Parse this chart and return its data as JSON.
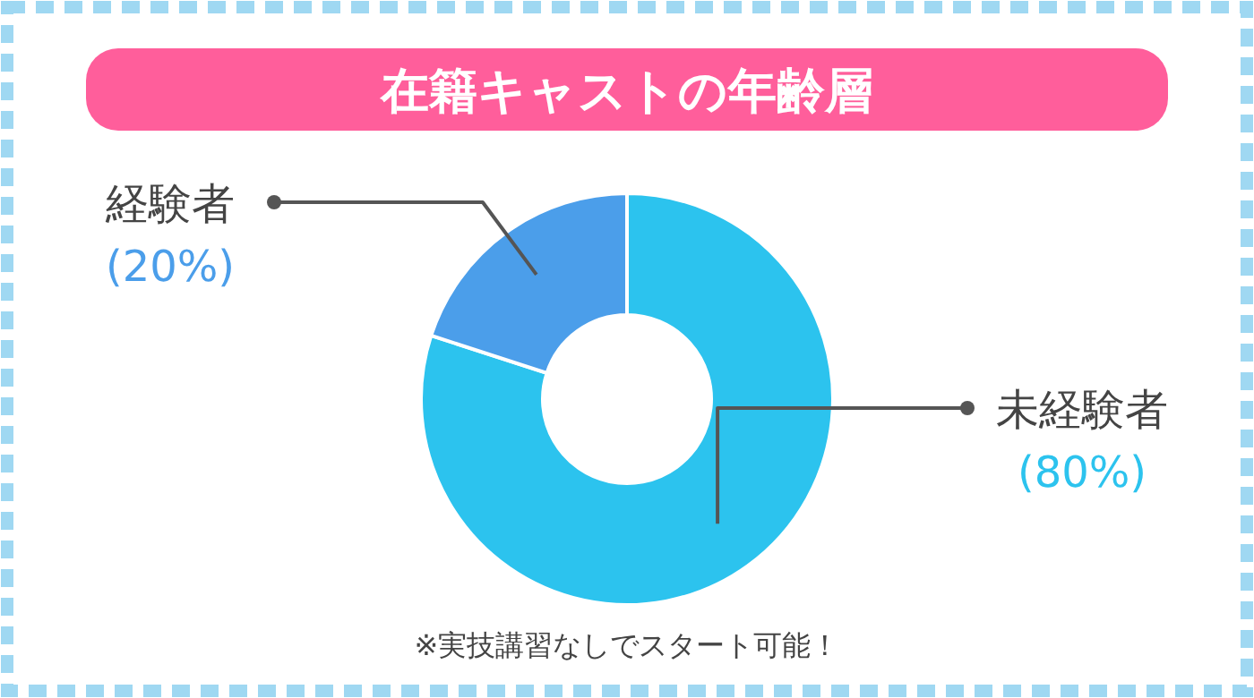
{
  "chart_data": {
    "type": "donut",
    "title": "在籍キャストの年齢層",
    "categories": [
      "未経験者",
      "経験者"
    ],
    "values": [
      80,
      20
    ],
    "value_labels": [
      "(80%)",
      "(20%)"
    ],
    "colors": [
      "#2cc3ee",
      "#4b9eea"
    ],
    "annotations": [
      "※実技講習なしでスタート可能！"
    ]
  }
}
